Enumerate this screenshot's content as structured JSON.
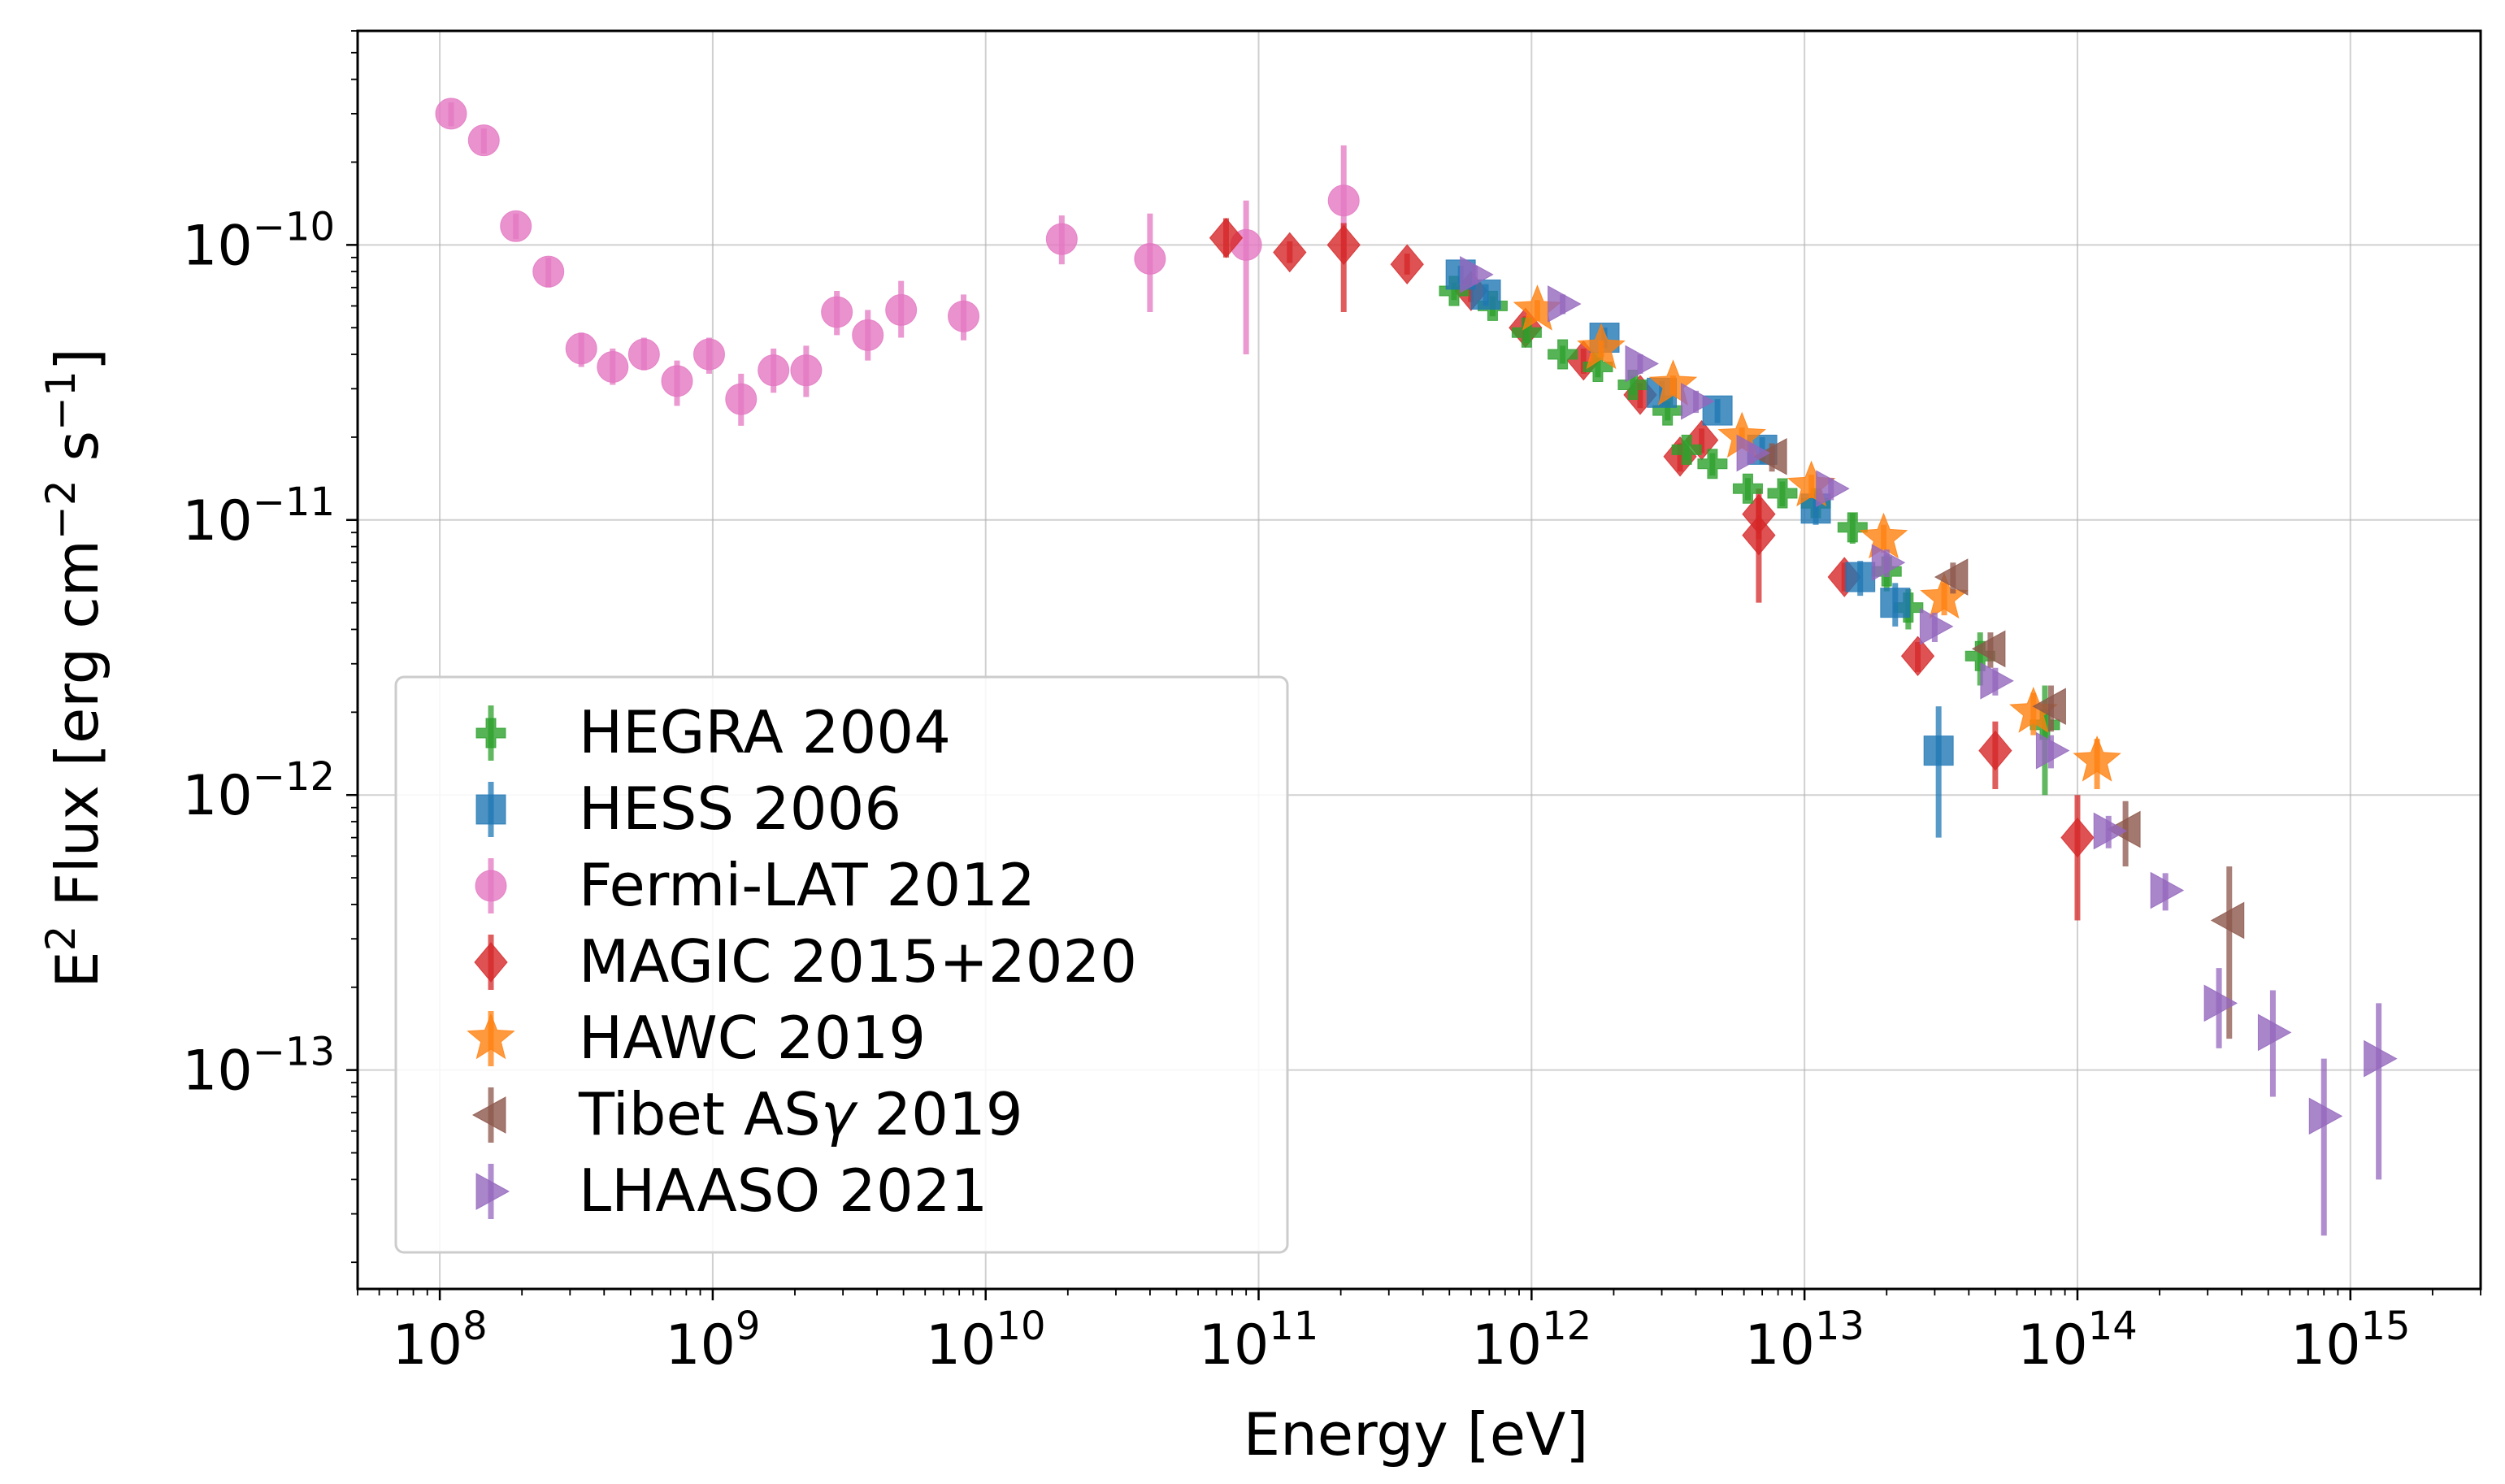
{
  "chart_data": {
    "type": "scatter",
    "title": "",
    "xlabel": "Energy [eV]",
    "ylabel_parts": {
      "e": "E",
      "e_exp": "2",
      "flux": " Flux [erg cm",
      "cm_exp": "−2",
      "s": " s",
      "s_exp": "−1",
      "close": "]"
    },
    "xscale": "log",
    "yscale": "log",
    "xlim": [
      50000000.0,
      3000000000000000.0
    ],
    "ylim": [
      1.6e-14,
      6e-10
    ],
    "grid": true,
    "legend_position": "lower-left",
    "x_ticks": [
      {
        "value": 100000000.0,
        "base": "10",
        "exp": "8"
      },
      {
        "value": 1000000000.0,
        "base": "10",
        "exp": "9"
      },
      {
        "value": 10000000000.0,
        "base": "10",
        "exp": "10"
      },
      {
        "value": 100000000000.0,
        "base": "10",
        "exp": "11"
      },
      {
        "value": 1000000000000.0,
        "base": "10",
        "exp": "12"
      },
      {
        "value": 10000000000000.0,
        "base": "10",
        "exp": "13"
      },
      {
        "value": 100000000000000.0,
        "base": "10",
        "exp": "14"
      },
      {
        "value": 1000000000000000.0,
        "base": "10",
        "exp": "15"
      }
    ],
    "y_ticks": [
      {
        "value": 1e-13,
        "base": "10",
        "exp": "−13"
      },
      {
        "value": 1e-12,
        "base": "10",
        "exp": "−12"
      },
      {
        "value": 1e-11,
        "base": "10",
        "exp": "−11"
      },
      {
        "value": 1e-10,
        "base": "10",
        "exp": "−10"
      }
    ],
    "series": [
      {
        "name": "Fermi-LAT 2012",
        "label": "Fermi-LAT 2012",
        "marker": "circle",
        "color": "#e377c2",
        "points": [
          {
            "x": 110000000.0,
            "y": 3e-10,
            "lo": 2.7e-10,
            "hi": 3.3e-10
          },
          {
            "x": 145000000.0,
            "y": 2.4e-10,
            "lo": 2.15e-10,
            "hi": 2.65e-10
          },
          {
            "x": 190000000.0,
            "y": 1.17e-10,
            "lo": 1.05e-10,
            "hi": 1.3e-10
          },
          {
            "x": 250000000.0,
            "y": 8e-11,
            "lo": 7e-11,
            "hi": 9e-11
          },
          {
            "x": 330000000.0,
            "y": 4.2e-11,
            "lo": 3.6e-11,
            "hi": 4.8e-11
          },
          {
            "x": 430000000.0,
            "y": 3.6e-11,
            "lo": 3.1e-11,
            "hi": 4.2e-11
          },
          {
            "x": 560000000.0,
            "y": 4e-11,
            "lo": 3.5e-11,
            "hi": 4.6e-11
          },
          {
            "x": 740000000.0,
            "y": 3.2e-11,
            "lo": 2.6e-11,
            "hi": 3.8e-11
          },
          {
            "x": 970000000.0,
            "y": 4e-11,
            "lo": 3.4e-11,
            "hi": 4.6e-11
          },
          {
            "x": 1270000000.0,
            "y": 2.75e-11,
            "lo": 2.2e-11,
            "hi": 3.4e-11
          },
          {
            "x": 1670000000.0,
            "y": 3.5e-11,
            "lo": 2.9e-11,
            "hi": 4.2e-11
          },
          {
            "x": 2200000000.0,
            "y": 3.5e-11,
            "lo": 2.8e-11,
            "hi": 4.3e-11
          },
          {
            "x": 2850000000.0,
            "y": 5.7e-11,
            "lo": 4.7e-11,
            "hi": 6.8e-11
          },
          {
            "x": 3700000000.0,
            "y": 4.7e-11,
            "lo": 3.8e-11,
            "hi": 5.8e-11
          },
          {
            "x": 4900000000.0,
            "y": 5.8e-11,
            "lo": 4.6e-11,
            "hi": 7.4e-11
          },
          {
            "x": 8300000000.0,
            "y": 5.5e-11,
            "lo": 4.5e-11,
            "hi": 6.6e-11
          },
          {
            "x": 19000000000.0,
            "y": 1.05e-10,
            "lo": 8.5e-11,
            "hi": 1.28e-10
          },
          {
            "x": 40000000000.0,
            "y": 8.9e-11,
            "lo": 5.7e-11,
            "hi": 1.3e-10
          },
          {
            "x": 90000000000.0,
            "y": 1e-10,
            "lo": 4e-11,
            "hi": 1.45e-10
          },
          {
            "x": 205000000000.0,
            "y": 1.45e-10,
            "lo": 9e-11,
            "hi": 2.3e-10
          }
        ]
      },
      {
        "name": "MAGIC 2015+2020",
        "label": "MAGIC 2015+2020",
        "marker": "diamond",
        "color": "#d62728",
        "points": [
          {
            "x": 76000000000.0,
            "y": 1.06e-10,
            "lo": 9e-11,
            "hi": 1.25e-10
          },
          {
            "x": 130000000000.0,
            "y": 9.4e-11,
            "lo": 8.6e-11,
            "hi": 1.03e-10
          },
          {
            "x": 205000000000.0,
            "y": 1e-10,
            "lo": 5.7e-11,
            "hi": 1.2e-10
          },
          {
            "x": 350000000000.0,
            "y": 8.5e-11,
            "lo": 7.8e-11,
            "hi": 9.3e-11
          },
          {
            "x": 600000000000.0,
            "y": 6.8e-11,
            "lo": 6.2e-11,
            "hi": 7.4e-11
          },
          {
            "x": 950000000000.0,
            "y": 5e-11,
            "lo": 4.5e-11,
            "hi": 5.5e-11
          },
          {
            "x": 1550000000000.0,
            "y": 3.8e-11,
            "lo": 3.4e-11,
            "hi": 4.2e-11
          },
          {
            "x": 2500000000000.0,
            "y": 2.85e-11,
            "lo": 2.55e-11,
            "hi": 3.15e-11
          },
          {
            "x": 3500000000000.0,
            "y": 1.7e-11,
            "lo": 1.5e-11,
            "hi": 1.9e-11
          },
          {
            "x": 4200000000000.0,
            "y": 1.95e-11,
            "lo": 1.75e-11,
            "hi": 2.15e-11
          },
          {
            "x": 6800000000000.0,
            "y": 1.05e-11,
            "lo": 8.5e-12,
            "hi": 1.3e-11
          },
          {
            "x": 6800000000000.0,
            "y": 8.8e-12,
            "lo": 5e-12,
            "hi": 1.2e-11
          },
          {
            "x": 14000000000000.0,
            "y": 6.2e-12,
            "lo": 5.5e-12,
            "hi": 7e-12
          },
          {
            "x": 26000000000000.0,
            "y": 3.2e-12,
            "lo": 2.8e-12,
            "hi": 3.6e-12
          },
          {
            "x": 50000000000000.0,
            "y": 1.45e-12,
            "lo": 1.05e-12,
            "hi": 1.85e-12
          },
          {
            "x": 100000000000000.0,
            "y": 7e-13,
            "lo": 3.5e-13,
            "hi": 1e-12
          }
        ]
      },
      {
        "name": "HEGRA 2004",
        "label": "HEGRA 2004",
        "marker": "plus",
        "color": "#2ca02c",
        "points": [
          {
            "x": 520000000000.0,
            "y": 6.8e-11,
            "lo": 6.3e-11,
            "hi": 7.3e-11
          },
          {
            "x": 720000000000.0,
            "y": 6e-11,
            "lo": 5.5e-11,
            "hi": 6.5e-11
          },
          {
            "x": 960000000000.0,
            "y": 4.8e-11,
            "lo": 4.4e-11,
            "hi": 5.2e-11
          },
          {
            "x": 1300000000000.0,
            "y": 4e-11,
            "lo": 3.7e-11,
            "hi": 4.3e-11
          },
          {
            "x": 1750000000000.0,
            "y": 3.6e-11,
            "lo": 3.3e-11,
            "hi": 3.9e-11
          },
          {
            "x": 2350000000000.0,
            "y": 3.1e-11,
            "lo": 2.85e-11,
            "hi": 3.35e-11
          },
          {
            "x": 3150000000000.0,
            "y": 2.5e-11,
            "lo": 2.3e-11,
            "hi": 2.7e-11
          },
          {
            "x": 3700000000000.0,
            "y": 1.8e-11,
            "lo": 1.65e-11,
            "hi": 1.95e-11
          },
          {
            "x": 4600000000000.0,
            "y": 1.6e-11,
            "lo": 1.45e-11,
            "hi": 1.75e-11
          },
          {
            "x": 6200000000000.0,
            "y": 1.3e-11,
            "lo": 1.18e-11,
            "hi": 1.42e-11
          },
          {
            "x": 8300000000000.0,
            "y": 1.25e-11,
            "lo": 1.12e-11,
            "hi": 1.38e-11
          },
          {
            "x": 11000000000000.0,
            "y": 1.15e-11,
            "lo": 1.02e-11,
            "hi": 1.28e-11
          },
          {
            "x": 15000000000000.0,
            "y": 9.4e-12,
            "lo": 8.2e-12,
            "hi": 1.06e-11
          },
          {
            "x": 20000000000000.0,
            "y": 6.5e-12,
            "lo": 5.5e-12,
            "hi": 7.5e-12
          },
          {
            "x": 24000000000000.0,
            "y": 4.8e-12,
            "lo": 4e-12,
            "hi": 5.6e-12
          },
          {
            "x": 44000000000000.0,
            "y": 3.2e-12,
            "lo": 2.5e-12,
            "hi": 3.9e-12
          },
          {
            "x": 76000000000000.0,
            "y": 1.8e-12,
            "lo": 1e-12,
            "hi": 2.5e-12
          }
        ]
      },
      {
        "name": "HESS 2006",
        "label": "HESS 2006",
        "marker": "square",
        "color": "#1f77b4",
        "points": [
          {
            "x": 550000000000.0,
            "y": 7.8e-11,
            "lo": 7.2e-11,
            "hi": 8.4e-11
          },
          {
            "x": 680000000000.0,
            "y": 6.6e-11,
            "lo": 6e-11,
            "hi": 7.2e-11
          },
          {
            "x": 1850000000000.0,
            "y": 4.6e-11,
            "lo": 4.2e-11,
            "hi": 5e-11
          },
          {
            "x": 3000000000000.0,
            "y": 2.9e-11,
            "lo": 2.6e-11,
            "hi": 3.2e-11
          },
          {
            "x": 4800000000000.0,
            "y": 2.5e-11,
            "lo": 2.25e-11,
            "hi": 2.75e-11
          },
          {
            "x": 7000000000000.0,
            "y": 1.8e-11,
            "lo": 1.6e-11,
            "hi": 2e-11
          },
          {
            "x": 11000000000000.0,
            "y": 1.1e-11,
            "lo": 9.6e-12,
            "hi": 1.24e-11
          },
          {
            "x": 16000000000000.0,
            "y": 6.2e-12,
            "lo": 5.3e-12,
            "hi": 7.1e-12
          },
          {
            "x": 21500000000000.0,
            "y": 5e-12,
            "lo": 4.1e-12,
            "hi": 5.9e-12
          },
          {
            "x": 31000000000000.0,
            "y": 1.45e-12,
            "lo": 7e-13,
            "hi": 2.1e-12
          }
        ]
      },
      {
        "name": "HAWC 2019",
        "label": "HAWC 2019",
        "marker": "star",
        "color": "#ff7f0e",
        "points": [
          {
            "x": 1050000000000.0,
            "y": 5.8e-11,
            "lo": 5.3e-11,
            "hi": 6.3e-11
          },
          {
            "x": 1800000000000.0,
            "y": 4.2e-11,
            "lo": 3.9e-11,
            "hi": 4.5e-11
          },
          {
            "x": 3300000000000.0,
            "y": 3.1e-11,
            "lo": 2.85e-11,
            "hi": 3.35e-11
          },
          {
            "x": 5900000000000.0,
            "y": 2e-11,
            "lo": 1.83e-11,
            "hi": 2.17e-11
          },
          {
            "x": 10600000000000.0,
            "y": 1.33e-11,
            "lo": 1.2e-11,
            "hi": 1.46e-11
          },
          {
            "x": 19500000000000.0,
            "y": 8.6e-12,
            "lo": 7.6e-12,
            "hi": 9.6e-12
          },
          {
            "x": 32500000000000.0,
            "y": 5.2e-12,
            "lo": 4.5e-12,
            "hi": 5.9e-12
          },
          {
            "x": 69000000000000.0,
            "y": 2e-12,
            "lo": 1.65e-12,
            "hi": 2.35e-12
          },
          {
            "x": 118000000000000.0,
            "y": 1.33e-12,
            "lo": 1.05e-12,
            "hi": 1.6e-12
          }
        ]
      },
      {
        "name": "Tibet ASγ 2019",
        "label_main": "Tibet AS",
        "label_gamma": "γ",
        "label_year": " 2019",
        "marker": "triangle-left",
        "color": "#8c564b",
        "points": [
          {
            "x": 7600000000000.0,
            "y": 1.7e-11,
            "lo": 1.5e-11,
            "hi": 1.9e-11
          },
          {
            "x": 35000000000000.0,
            "y": 6.2e-12,
            "lo": 5.4e-12,
            "hi": 7e-12
          },
          {
            "x": 48000000000000.0,
            "y": 3.4e-12,
            "lo": 2.9e-12,
            "hi": 3.9e-12
          },
          {
            "x": 80000000000000.0,
            "y": 2.1e-12,
            "lo": 1.7e-12,
            "hi": 2.5e-12
          },
          {
            "x": 150000000000000.0,
            "y": 7.5e-13,
            "lo": 5.5e-13,
            "hi": 9.5e-13
          },
          {
            "x": 360000000000000.0,
            "y": 3.5e-13,
            "lo": 1.3e-13,
            "hi": 5.5e-13
          }
        ]
      },
      {
        "name": "LHAASO 2021",
        "label": "LHAASO 2021",
        "marker": "triangle-right",
        "color": "#9467bd",
        "points": [
          {
            "x": 620000000000.0,
            "y": 7.8e-11,
            "lo": 7.2e-11,
            "hi": 8.4e-11
          },
          {
            "x": 1300000000000.0,
            "y": 6.1e-11,
            "lo": 5.6e-11,
            "hi": 6.6e-11
          },
          {
            "x": 2500000000000.0,
            "y": 3.7e-11,
            "lo": 3.4e-11,
            "hi": 4e-11
          },
          {
            "x": 4000000000000.0,
            "y": 2.7e-11,
            "lo": 2.45e-11,
            "hi": 2.95e-11
          },
          {
            "x": 6400000000000.0,
            "y": 1.75e-11,
            "lo": 1.6e-11,
            "hi": 1.9e-11
          },
          {
            "x": 12500000000000.0,
            "y": 1.3e-11,
            "lo": 1.18e-11,
            "hi": 1.42e-11
          },
          {
            "x": 20000000000000.0,
            "y": 7e-12,
            "lo": 6.2e-12,
            "hi": 7.8e-12
          },
          {
            "x": 30000000000000.0,
            "y": 4.1e-12,
            "lo": 3.6e-12,
            "hi": 4.6e-12
          },
          {
            "x": 50000000000000.0,
            "y": 2.6e-12,
            "lo": 2.3e-12,
            "hi": 2.9e-12
          },
          {
            "x": 80000000000000.0,
            "y": 1.45e-12,
            "lo": 1.25e-12,
            "hi": 1.65e-12
          },
          {
            "x": 130000000000000.0,
            "y": 7.4e-13,
            "lo": 6.4e-13,
            "hi": 8.4e-13
          },
          {
            "x": 210000000000000.0,
            "y": 4.5e-13,
            "lo": 3.8e-13,
            "hi": 5.2e-13
          },
          {
            "x": 330000000000000.0,
            "y": 1.75e-13,
            "lo": 1.2e-13,
            "hi": 2.35e-13
          },
          {
            "x": 520000000000000.0,
            "y": 1.37e-13,
            "lo": 8e-14,
            "hi": 1.95e-13
          },
          {
            "x": 800000000000000.0,
            "y": 6.8e-14,
            "lo": 2.5e-14,
            "hi": 1.1e-13
          },
          {
            "x": 1270000000000000.0,
            "y": 1.1e-13,
            "lo": 4e-14,
            "hi": 1.75e-13
          }
        ]
      }
    ],
    "legend_order": [
      "HEGRA 2004",
      "HESS 2006",
      "Fermi-LAT 2012",
      "MAGIC 2015+2020",
      "HAWC 2019",
      "Tibet ASγ 2019",
      "LHAASO 2021"
    ]
  }
}
